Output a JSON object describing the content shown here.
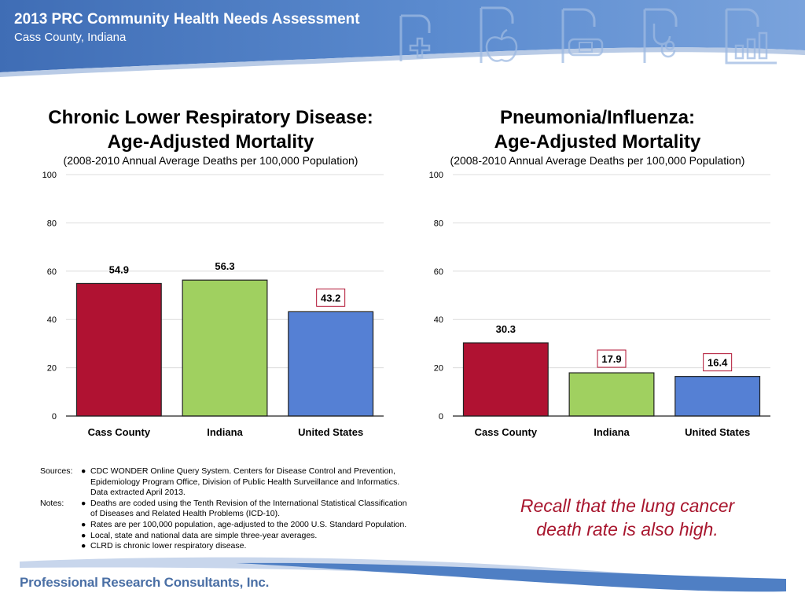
{
  "header": {
    "title": "2013 PRC Community Health Needs Assessment",
    "subtitle": "Cass County, Indiana",
    "icons": [
      "medical-cross-icon",
      "apple-icon",
      "bandage-icon",
      "stethoscope-icon",
      "bar-chart-icon"
    ],
    "color": "#4f7fc4"
  },
  "chart_data": [
    {
      "type": "bar",
      "title_line1": "Chronic Lower Respiratory Disease:",
      "title_line2": "Age-Adjusted Mortality",
      "subtitle": "(2008-2010 Annual Average Deaths per 100,000 Population)",
      "categories": [
        "Cass County",
        "Indiana",
        "United States"
      ],
      "values": [
        54.9,
        56.3,
        43.2
      ],
      "colors": [
        "#b01232",
        "#a0d060",
        "#5580d4"
      ],
      "boxed_labels": [
        false,
        false,
        true
      ],
      "ylim": [
        0,
        100
      ],
      "yticks": [
        "0",
        "20",
        "40",
        "60",
        "80",
        "100"
      ],
      "grid": true
    },
    {
      "type": "bar",
      "title_line1": "Pneumonia/Influenza:",
      "title_line2": "Age-Adjusted Mortality",
      "subtitle": "(2008-2010 Annual Average Deaths per 100,000 Population)",
      "categories": [
        "Cass County",
        "Indiana",
        "United States"
      ],
      "values": [
        30.3,
        17.9,
        16.4
      ],
      "colors": [
        "#b01232",
        "#a0d060",
        "#5580d4"
      ],
      "boxed_labels": [
        false,
        true,
        true
      ],
      "ylim": [
        0,
        100
      ],
      "yticks": [
        "0",
        "20",
        "40",
        "60",
        "80",
        "100"
      ],
      "grid": true
    }
  ],
  "footnotes": {
    "sources_label": "Sources:",
    "sources": [
      {
        "line1": "CDC WONDER Online Query System.  Centers for Disease Control and Prevention,",
        "line2": "Epidemiology Program Office, Division of Public Health Surveillance and Informatics.",
        "line3": "Data extracted April 2013."
      }
    ],
    "notes_label": "Notes:",
    "notes": [
      {
        "line1": "Deaths are coded using the Tenth Revision of the International Statistical Classification",
        "line2": "of Diseases and Related Health Problems (ICD-10)."
      },
      {
        "line1": "Rates are per 100,000 population, age-adjusted to the 2000 U.S. Standard Population."
      },
      {
        "line1": "Local, state and national data are simple three-year averages."
      },
      {
        "line1": "CLRD is chronic lower respiratory disease."
      }
    ]
  },
  "callout": {
    "line1": "Recall that the lung cancer",
    "line2": "death rate is also high.",
    "color": "#a8162e"
  },
  "footer": {
    "logo_text": "Professional Research Consultants, Inc."
  }
}
